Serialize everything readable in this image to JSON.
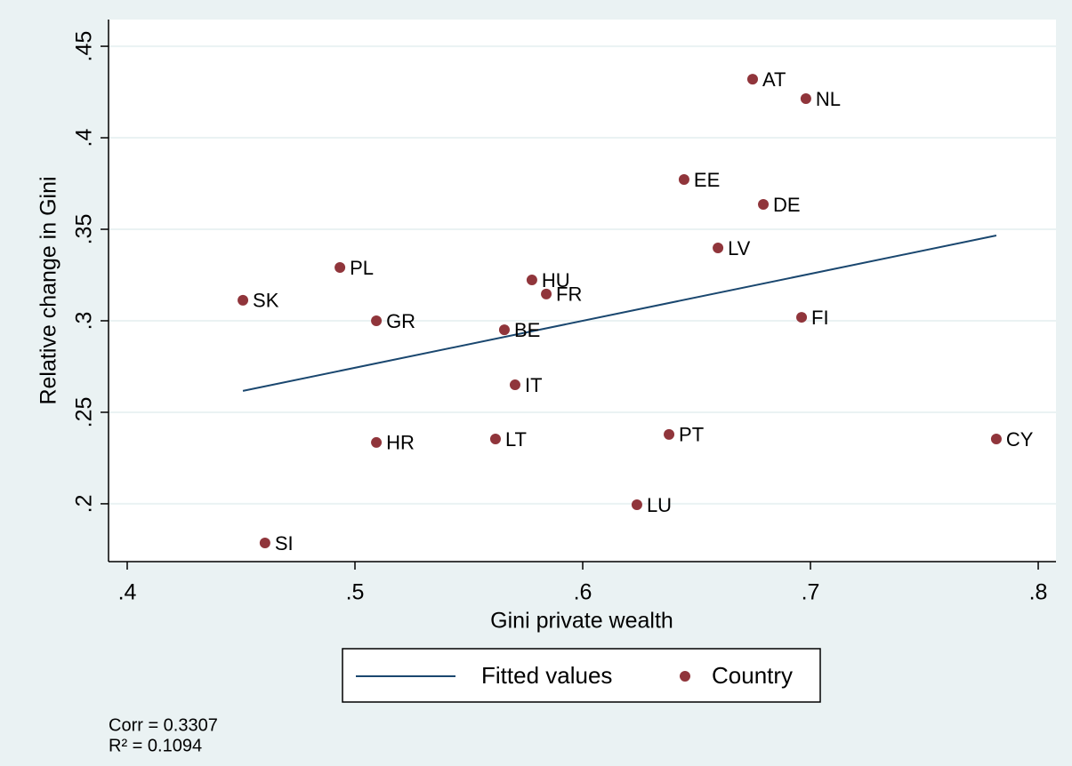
{
  "chart_data": {
    "type": "scatter",
    "xlabel": "Gini private wealth",
    "ylabel": "Relative change in Gini",
    "xlim": [
      0.3918,
      0.8078
    ],
    "ylim": [
      0.1684,
      0.4646
    ],
    "xticks": [
      {
        "value": 0.4,
        "label": ".4"
      },
      {
        "value": 0.5,
        "label": ".5"
      },
      {
        "value": 0.6,
        "label": ".6"
      },
      {
        "value": 0.7,
        "label": ".7"
      },
      {
        "value": 0.8,
        "label": ".8"
      }
    ],
    "yticks": [
      {
        "value": 0.2,
        "label": ".2"
      },
      {
        "value": 0.25,
        "label": ".25"
      },
      {
        "value": 0.3,
        "label": ".3"
      },
      {
        "value": 0.35,
        "label": ".35"
      },
      {
        "value": 0.4,
        "label": ".4"
      },
      {
        "value": 0.45,
        "label": ".45"
      }
    ],
    "grid": true,
    "legend": "bottom",
    "series": [
      {
        "name": "Fitted values",
        "type": "line",
        "color": "#1a476f",
        "x": [
          0.4508,
          0.7816
        ],
        "values": [
          0.2617,
          0.3466
        ]
      },
      {
        "name": "Country",
        "type": "scatter",
        "color": "#90353b",
        "labels": [
          "AT",
          "NL",
          "EE",
          "DE",
          "LV",
          "PL",
          "HU",
          "FR",
          "SK",
          "GR",
          "FI",
          "BE",
          "IT",
          "HR",
          "LT",
          "PT",
          "CY",
          "LU",
          "SI"
        ],
        "x": [
          0.6746,
          0.698,
          0.6445,
          0.6793,
          0.6594,
          0.4934,
          0.5777,
          0.584,
          0.4508,
          0.5094,
          0.6961,
          0.5656,
          0.5703,
          0.5094,
          0.5617,
          0.6379,
          0.7816,
          0.6238,
          0.4605
        ],
        "values": [
          0.432,
          0.4214,
          0.3772,
          0.3636,
          0.3398,
          0.3291,
          0.3223,
          0.3146,
          0.3112,
          0.3,
          0.3019,
          0.2951,
          0.265,
          0.2335,
          0.2354,
          0.2379,
          0.2354,
          0.1995,
          0.1786
        ]
      }
    ],
    "annotations": [
      "Corr = 0.3307",
      "R² = 0.1094"
    ]
  }
}
